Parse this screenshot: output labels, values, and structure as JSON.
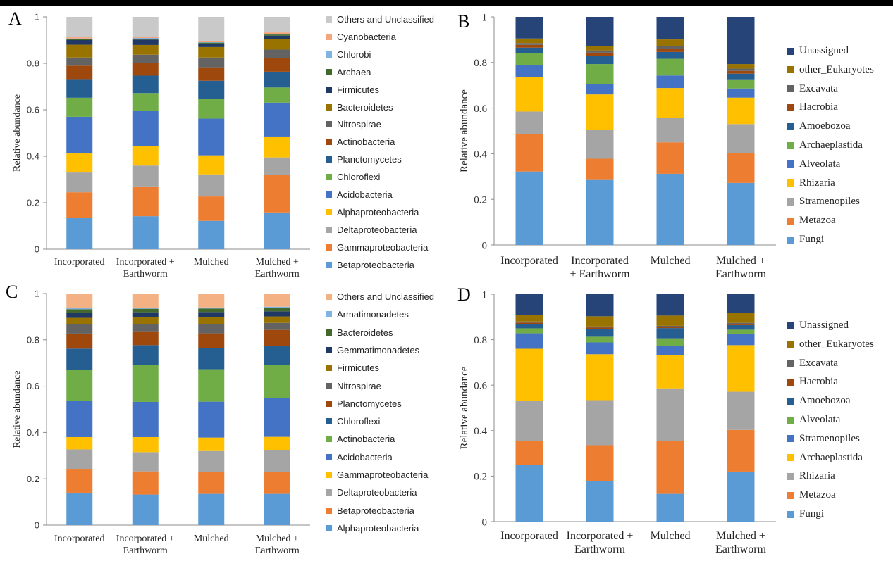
{
  "chart_data": [
    {
      "panel": "A",
      "type": "bar",
      "stacked": true,
      "ylabel": "Relative abundance",
      "ylim": [
        0,
        1
      ],
      "yticks": [
        "0",
        "0.2",
        "0.4",
        "0.6",
        "0.8",
        "1"
      ],
      "categories": [
        "Incorporated",
        "Incorporated + Earthworm",
        "Mulched",
        "Mulched + Earthworm"
      ],
      "category_lines": [
        [
          "Incorporated"
        ],
        [
          "Incorporated +",
          "Earthworm"
        ],
        [
          "Mulched"
        ],
        [
          "Mulched +",
          "Earthworm"
        ]
      ],
      "legend_placement": "right",
      "series": [
        {
          "name": "Betaproteobacteria",
          "color": "#5b9bd5",
          "values": [
            0.135,
            0.142,
            0.122,
            0.158
          ]
        },
        {
          "name": "Gammaproteobacteria",
          "color": "#ed7d31",
          "values": [
            0.11,
            0.128,
            0.105,
            0.162
          ]
        },
        {
          "name": "Deltaproteobacteria",
          "color": "#a5a5a5",
          "values": [
            0.085,
            0.09,
            0.095,
            0.075
          ]
        },
        {
          "name": "Alphaproteobacteria",
          "color": "#ffc000",
          "values": [
            0.082,
            0.085,
            0.082,
            0.09
          ]
        },
        {
          "name": "Acidobacteria",
          "color": "#4472c4",
          "values": [
            0.158,
            0.152,
            0.158,
            0.146
          ]
        },
        {
          "name": "Chloroflexi",
          "color": "#70ad47",
          "values": [
            0.082,
            0.075,
            0.085,
            0.065
          ]
        },
        {
          "name": "Planctomycetes",
          "color": "#255e91",
          "values": [
            0.08,
            0.075,
            0.078,
            0.068
          ]
        },
        {
          "name": "Actinobacteria",
          "color": "#9e480e",
          "values": [
            0.058,
            0.055,
            0.058,
            0.06
          ]
        },
        {
          "name": "Nitrospirae",
          "color": "#636363",
          "values": [
            0.035,
            0.035,
            0.042,
            0.035
          ]
        },
        {
          "name": "Bacteroidetes",
          "color": "#997300",
          "values": [
            0.055,
            0.042,
            0.045,
            0.045
          ]
        },
        {
          "name": "Firmicutes",
          "color": "#203864",
          "values": [
            0.02,
            0.023,
            0.015,
            0.015
          ]
        },
        {
          "name": "Archaea",
          "color": "#43682b",
          "values": [
            0.004,
            0.004,
            0.004,
            0.005
          ]
        },
        {
          "name": "Chlorobi",
          "color": "#7fb3e0",
          "values": [
            0.003,
            0.003,
            0.003,
            0.003
          ]
        },
        {
          "name": "Cyanobacteria",
          "color": "#f4a57d",
          "values": [
            0.005,
            0.006,
            0.005,
            0.006
          ]
        },
        {
          "name": "Others and Unclassified",
          "color": "#c9c9c9",
          "values": [
            0.088,
            0.085,
            0.103,
            0.067
          ]
        }
      ]
    },
    {
      "panel": "B",
      "type": "bar",
      "stacked": true,
      "ylabel": "Relative abundance",
      "ylim": [
        0,
        1
      ],
      "yticks": [
        "0",
        "0.2",
        "0.4",
        "0.6",
        "0.8",
        "1"
      ],
      "categories": [
        "Incorporated",
        "Incorporated + Earthworm",
        "Mulched",
        "Mulched + Earthworm"
      ],
      "category_lines": [
        [
          "Incorporated"
        ],
        [
          "Incorporated",
          "+ Earthworm"
        ],
        [
          "Mulched"
        ],
        [
          "Mulched +",
          "Earthworm"
        ]
      ],
      "legend_placement": "right",
      "series": [
        {
          "name": "Fungi",
          "color": "#5b9bd5",
          "values": [
            0.322,
            0.285,
            0.312,
            0.272
          ]
        },
        {
          "name": "Metazoa",
          "color": "#ed7d31",
          "values": [
            0.163,
            0.093,
            0.138,
            0.13
          ]
        },
        {
          "name": "Stramenopiles",
          "color": "#a5a5a5",
          "values": [
            0.1,
            0.127,
            0.108,
            0.128
          ]
        },
        {
          "name": "Rhizaria",
          "color": "#ffc000",
          "values": [
            0.15,
            0.155,
            0.13,
            0.116
          ]
        },
        {
          "name": "Alveolata",
          "color": "#4472c4",
          "values": [
            0.052,
            0.045,
            0.055,
            0.04
          ]
        },
        {
          "name": "Archaeplastida",
          "color": "#70ad47",
          "values": [
            0.053,
            0.088,
            0.073,
            0.04
          ]
        },
        {
          "name": "Amoebozoa",
          "color": "#255e91",
          "values": [
            0.025,
            0.035,
            0.03,
            0.025
          ]
        },
        {
          "name": "Hacrobia",
          "color": "#9e480e",
          "values": [
            0.012,
            0.015,
            0.015,
            0.012
          ]
        },
        {
          "name": "Excavata",
          "color": "#636363",
          "values": [
            0.008,
            0.01,
            0.01,
            0.01
          ]
        },
        {
          "name": "other_Eukaryotes",
          "color": "#997300",
          "values": [
            0.02,
            0.02,
            0.03,
            0.02
          ]
        },
        {
          "name": "Unassigned",
          "color": "#264478",
          "values": [
            0.095,
            0.127,
            0.099,
            0.207
          ]
        }
      ]
    },
    {
      "panel": "C",
      "type": "bar",
      "stacked": true,
      "ylabel": "Relative abundance",
      "ylim": [
        0,
        1
      ],
      "yticks": [
        "0",
        "0.2",
        "0.4",
        "0.6",
        "0.8",
        "1"
      ],
      "categories": [
        "Incorporated",
        "Incorporated + Earthworm",
        "Mulched",
        "Mulched + Earthworm"
      ],
      "category_lines": [
        [
          "Incorporated"
        ],
        [
          "Incorporated +",
          "Earthworm"
        ],
        [
          "Mulched"
        ],
        [
          "Mulched +",
          "Earthworm"
        ]
      ],
      "legend_placement": "right",
      "series": [
        {
          "name": "Alphaproteobacteria",
          "color": "#5b9bd5",
          "values": [
            0.14,
            0.132,
            0.135,
            0.135
          ]
        },
        {
          "name": "Betaproteobacteria",
          "color": "#ed7d31",
          "values": [
            0.1,
            0.1,
            0.095,
            0.095
          ]
        },
        {
          "name": "Deltaproteobacteria",
          "color": "#a5a5a5",
          "values": [
            0.087,
            0.083,
            0.09,
            0.093
          ]
        },
        {
          "name": "Gammaproteobacteria",
          "color": "#ffc000",
          "values": [
            0.053,
            0.065,
            0.058,
            0.058
          ]
        },
        {
          "name": "Acidobacteria",
          "color": "#4472c4",
          "values": [
            0.155,
            0.152,
            0.155,
            0.167
          ]
        },
        {
          "name": "Actinobacteria",
          "color": "#70ad47",
          "values": [
            0.135,
            0.16,
            0.14,
            0.145
          ]
        },
        {
          "name": "Chloroflexi",
          "color": "#255e91",
          "values": [
            0.092,
            0.085,
            0.09,
            0.08
          ]
        },
        {
          "name": "Planctomycetes",
          "color": "#9e480e",
          "values": [
            0.065,
            0.06,
            0.065,
            0.07
          ]
        },
        {
          "name": "Nitrospirae",
          "color": "#636363",
          "values": [
            0.04,
            0.03,
            0.04,
            0.03
          ]
        },
        {
          "name": "Firmicutes",
          "color": "#997300",
          "values": [
            0.028,
            0.03,
            0.03,
            0.028
          ]
        },
        {
          "name": "Gemmatimonadetes",
          "color": "#203864",
          "values": [
            0.022,
            0.022,
            0.022,
            0.022
          ]
        },
        {
          "name": "Bacteroidetes",
          "color": "#43682b",
          "values": [
            0.015,
            0.015,
            0.015,
            0.015
          ]
        },
        {
          "name": "Armatimonadetes",
          "color": "#7fb3e0",
          "values": [
            0.005,
            0.005,
            0.005,
            0.005
          ]
        },
        {
          "name": "Others and Unclassified",
          "color": "#f4b183",
          "values": [
            0.063,
            0.061,
            0.06,
            0.057
          ]
        }
      ]
    },
    {
      "panel": "D",
      "type": "bar",
      "stacked": true,
      "ylabel": "Relative abundance",
      "ylim": [
        0,
        1
      ],
      "yticks": [
        "0",
        "0.2",
        "0.4",
        "0.6",
        "0.8",
        "1"
      ],
      "categories": [
        "Incorporated",
        "Incorporated + Earthworm",
        "Mulched",
        "Mulched + Earthworm"
      ],
      "category_lines": [
        [
          "Incorporated"
        ],
        [
          "Incorporated +",
          "Earthworm"
        ],
        [
          "Mulched"
        ],
        [
          "Mulched +",
          "Earthworm"
        ]
      ],
      "legend_placement": "right",
      "series": [
        {
          "name": "Fungi",
          "color": "#5b9bd5",
          "values": [
            0.25,
            0.178,
            0.122,
            0.22
          ]
        },
        {
          "name": "Metazoa",
          "color": "#ed7d31",
          "values": [
            0.105,
            0.158,
            0.232,
            0.183
          ]
        },
        {
          "name": "Rhizaria",
          "color": "#a5a5a5",
          "values": [
            0.175,
            0.198,
            0.232,
            0.168
          ]
        },
        {
          "name": "Archaeplastida",
          "color": "#ffc000",
          "values": [
            0.23,
            0.202,
            0.145,
            0.205
          ]
        },
        {
          "name": "Stramenopiles",
          "color": "#4472c4",
          "values": [
            0.068,
            0.052,
            0.04,
            0.048
          ]
        },
        {
          "name": "Alveolata",
          "color": "#70ad47",
          "values": [
            0.022,
            0.025,
            0.035,
            0.02
          ]
        },
        {
          "name": "Amoebozoa",
          "color": "#255e91",
          "values": [
            0.02,
            0.035,
            0.045,
            0.02
          ]
        },
        {
          "name": "Hacrobia",
          "color": "#9e480e",
          "values": [
            0.005,
            0.005,
            0.005,
            0.005
          ]
        },
        {
          "name": "Excavata",
          "color": "#636363",
          "values": [
            0.005,
            0.005,
            0.005,
            0.005
          ]
        },
        {
          "name": "other_Eukaryotes",
          "color": "#997300",
          "values": [
            0.03,
            0.045,
            0.045,
            0.045
          ]
        },
        {
          "name": "Unassigned",
          "color": "#264478",
          "values": [
            0.09,
            0.097,
            0.094,
            0.081
          ]
        }
      ]
    }
  ]
}
